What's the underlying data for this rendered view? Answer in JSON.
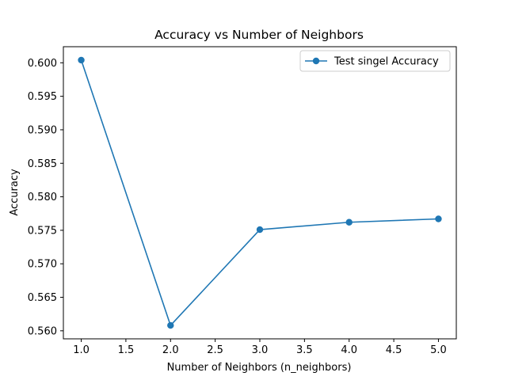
{
  "chart_data": {
    "type": "line",
    "title": "Accuracy vs Number of Neighbors",
    "xlabel": "Number of Neighbors (n_neighbors)",
    "ylabel": "Accuracy",
    "x": [
      1,
      2,
      3,
      4,
      5
    ],
    "series": [
      {
        "name": "Test singel Accuracy",
        "values": [
          0.6004,
          0.5608,
          0.5751,
          0.5762,
          0.5767
        ],
        "color": "#1f77b4",
        "marker": "circle"
      }
    ],
    "xlim": [
      0.8,
      5.2
    ],
    "ylim": [
      0.5588,
      0.6024
    ],
    "xticks": [
      1.0,
      1.5,
      2.0,
      2.5,
      3.0,
      3.5,
      4.0,
      4.5,
      5.0
    ],
    "xtick_labels": [
      "1.0",
      "1.5",
      "2.0",
      "2.5",
      "3.0",
      "3.5",
      "4.0",
      "4.5",
      "5.0"
    ],
    "yticks": [
      0.56,
      0.565,
      0.57,
      0.575,
      0.58,
      0.585,
      0.59,
      0.595,
      0.6
    ],
    "ytick_labels": [
      "0.560",
      "0.565",
      "0.570",
      "0.575",
      "0.580",
      "0.585",
      "0.590",
      "0.595",
      "0.600"
    ],
    "grid": false,
    "legend_position": "top-right"
  }
}
